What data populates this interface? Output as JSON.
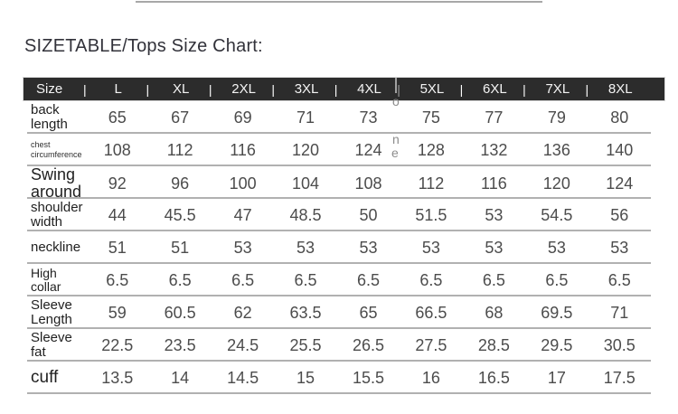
{
  "chart_data": {
    "type": "table",
    "title": "SIZETABLE/Tops Size Chart:",
    "columns": [
      "Size",
      "L",
      "XL",
      "2XL",
      "3XL",
      "4XL",
      "5XL",
      "6XL",
      "7XL",
      "8XL"
    ],
    "rows": [
      {
        "label": "back length",
        "values": [
          65,
          67,
          69,
          71,
          73,
          75,
          77,
          79,
          80
        ]
      },
      {
        "label": "chest circumference",
        "values": [
          108,
          112,
          116,
          120,
          124,
          128,
          132,
          136,
          140
        ]
      },
      {
        "label": "Swing around",
        "values": [
          92,
          96,
          100,
          104,
          108,
          112,
          116,
          120,
          124
        ]
      },
      {
        "label": "shoulder width",
        "values": [
          44,
          45.5,
          47,
          48.5,
          50,
          51.5,
          53,
          54.5,
          56
        ]
      },
      {
        "label": "neckline",
        "values": [
          51,
          51,
          53,
          53,
          53,
          53,
          53,
          53,
          53
        ]
      },
      {
        "label": "High collar",
        "values": [
          6.5,
          6.5,
          6.5,
          6.5,
          6.5,
          6.5,
          6.5,
          6.5,
          6.5
        ]
      },
      {
        "label": "Sleeve Length",
        "values": [
          59,
          60.5,
          62,
          63.5,
          65,
          66.5,
          68,
          69.5,
          71
        ]
      },
      {
        "label": "Sleeve fat",
        "values": [
          22.5,
          23.5,
          24.5,
          25.5,
          26.5,
          27.5,
          28.5,
          29.5,
          30.5
        ]
      },
      {
        "label": "cuff",
        "values": [
          13.5,
          14,
          14.5,
          15,
          15.5,
          16,
          16.5,
          17,
          17.5
        ]
      }
    ],
    "layout": {
      "header_bg": "#2c2c2c",
      "header_text": "#f4f4f4",
      "grid": "horizontal-rules"
    }
  },
  "ui": {
    "pipe": "|",
    "watermark_letters": [
      "o",
      "n",
      "e"
    ]
  }
}
